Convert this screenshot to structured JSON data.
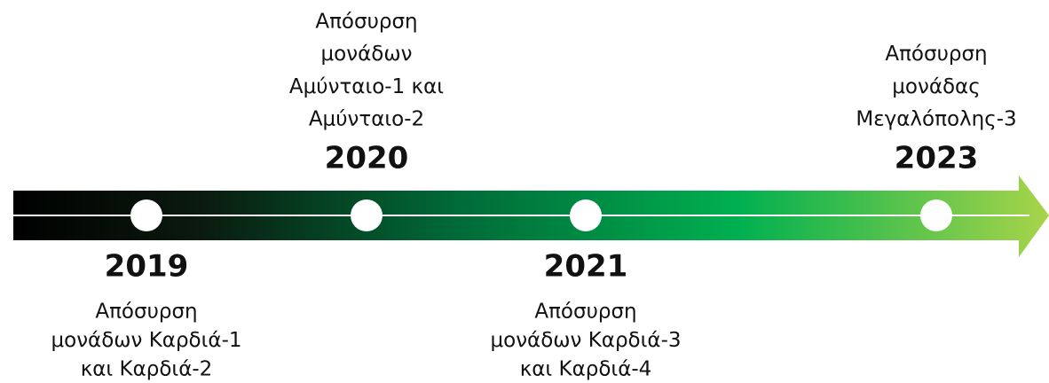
{
  "events": [
    {
      "year": "2019",
      "description": [
        "Απόσυρση",
        "μονάδων Καρδιά-1",
        "και Καρδιά-2"
      ]
    },
    {
      "year": "2020",
      "description": [
        "Απόσυρση",
        "μονάδων",
        "Αμύνταιο-1 και",
        "Αμύνταιο-2"
      ]
    },
    {
      "year": "2021",
      "description": [
        "Απόσυρση",
        "μονάδων Καρδιά-3",
        "και Καρδιά-4"
      ]
    },
    {
      "year": "2023",
      "description": [
        "Απόσυρση",
        "μονάδας",
        "Μεγαλόπολης-3"
      ]
    }
  ]
}
